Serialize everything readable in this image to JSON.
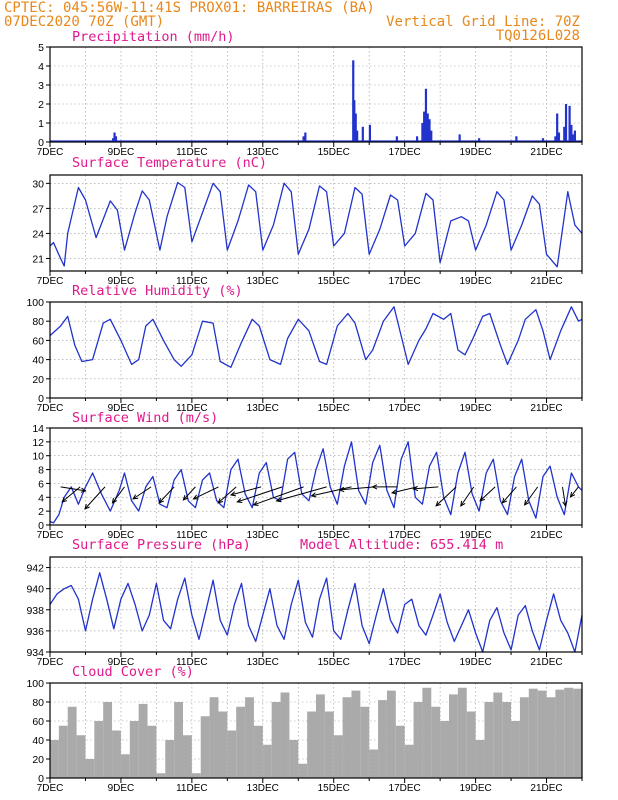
{
  "header": {
    "line1_left": "CPTEC:   045:56W-11:41S   PROX01: BARREIRAS (BA)",
    "line2_left": "07DEC2020 70Z (GMT)",
    "line2_right": "Vertical Grid Line: 70Z",
    "line3_right": "TQ0126L028"
  },
  "colors": {
    "header": "#e8871a",
    "title": "#e0198c",
    "line": "#2233cc",
    "cloud": "#aaaaaa"
  },
  "x_axis": {
    "start_day": 7,
    "end_day": 22,
    "labels": [
      "7DEC",
      "9DEC",
      "11DEC",
      "13DEC",
      "15DEC",
      "17DEC",
      "19DEC",
      "21DEC"
    ]
  },
  "chart_data": [
    {
      "type": "bar",
      "title": "Precipitation (mm/h)",
      "ylim": [
        0,
        5
      ],
      "yticks": [
        "0",
        "1",
        "2",
        "3",
        "4",
        "5"
      ],
      "x": [
        8.78,
        8.82,
        8.86,
        14.15,
        14.2,
        15.55,
        15.58,
        15.62,
        15.66,
        15.82,
        16.02,
        16.78,
        17.35,
        17.5,
        17.55,
        17.6,
        17.65,
        17.7,
        17.75,
        18.55,
        19.1,
        20.15,
        20.9,
        21.25,
        21.3,
        21.35,
        21.5,
        21.55,
        21.65,
        21.7,
        21.75,
        21.8
      ],
      "values": [
        0.2,
        0.5,
        0.3,
        0.3,
        0.5,
        4.3,
        2.2,
        1.5,
        0.6,
        0.8,
        0.9,
        0.3,
        0.3,
        1.0,
        1.6,
        2.8,
        1.5,
        1.2,
        0.6,
        0.4,
        0.2,
        0.3,
        0.2,
        0.3,
        1.5,
        0.5,
        0.8,
        2.0,
        1.9,
        0.9,
        0.4,
        0.6
      ]
    },
    {
      "type": "line",
      "title": "Surface Temperature (nC)",
      "ylim": [
        19.5,
        31
      ],
      "yticks": [
        "21",
        "24",
        "27",
        "30"
      ],
      "x": [
        7.0,
        7.1,
        7.3,
        7.4,
        7.5,
        7.8,
        8.0,
        8.3,
        8.7,
        8.9,
        9.1,
        9.4,
        9.6,
        9.8,
        10.1,
        10.3,
        10.6,
        10.8,
        11.0,
        11.3,
        11.6,
        11.8,
        12.0,
        12.3,
        12.6,
        12.8,
        13.0,
        13.3,
        13.6,
        13.8,
        14.0,
        14.3,
        14.6,
        14.8,
        15.0,
        15.3,
        15.6,
        15.8,
        16.0,
        16.3,
        16.6,
        16.8,
        17.0,
        17.3,
        17.6,
        17.8,
        18.0,
        18.3,
        18.6,
        18.8,
        19.0,
        19.3,
        19.6,
        19.8,
        20.0,
        20.3,
        20.6,
        20.8,
        21.0,
        21.3,
        21.6,
        21.8,
        22.0
      ],
      "values": [
        22.5,
        22.9,
        21.0,
        20.1,
        24.0,
        29.5,
        28.0,
        23.5,
        27.9,
        26.8,
        22.0,
        26.5,
        29.1,
        28.0,
        22.0,
        26.0,
        30.1,
        29.5,
        23.0,
        26.5,
        30.0,
        29.0,
        22.0,
        25.5,
        29.8,
        29.0,
        22.0,
        25.0,
        30.0,
        29.0,
        21.5,
        24.5,
        29.7,
        29.0,
        22.5,
        24.0,
        29.5,
        28.7,
        21.5,
        24.5,
        28.6,
        28.0,
        22.5,
        24.0,
        28.8,
        28.0,
        20.5,
        25.5,
        26.0,
        25.5,
        22.0,
        25.0,
        29.0,
        28.0,
        22.0,
        25.0,
        28.5,
        27.5,
        21.5,
        20.0,
        29.0,
        25.0,
        24.0
      ]
    },
    {
      "type": "line",
      "title": "Relative Humidity (%)",
      "ylim": [
        0,
        100
      ],
      "yticks": [
        "0",
        "20",
        "40",
        "60",
        "80",
        "100"
      ],
      "x": [
        7.0,
        7.3,
        7.5,
        7.7,
        7.9,
        8.2,
        8.5,
        8.7,
        9.0,
        9.3,
        9.5,
        9.7,
        9.9,
        10.2,
        10.5,
        10.7,
        11.0,
        11.3,
        11.6,
        11.8,
        12.1,
        12.4,
        12.7,
        12.9,
        13.2,
        13.5,
        13.7,
        14.0,
        14.3,
        14.6,
        14.8,
        15.1,
        15.4,
        15.6,
        15.9,
        16.1,
        16.4,
        16.7,
        16.9,
        17.1,
        17.4,
        17.6,
        17.8,
        18.1,
        18.3,
        18.5,
        18.7,
        18.9,
        19.2,
        19.4,
        19.7,
        19.9,
        20.2,
        20.4,
        20.7,
        20.9,
        21.1,
        21.4,
        21.7,
        21.9,
        22.0
      ],
      "values": [
        65,
        75,
        85,
        55,
        38,
        40,
        78,
        82,
        60,
        35,
        40,
        75,
        82,
        60,
        40,
        33,
        45,
        80,
        78,
        38,
        32,
        58,
        82,
        75,
        40,
        35,
        62,
        82,
        70,
        38,
        35,
        75,
        88,
        78,
        40,
        50,
        80,
        95,
        65,
        35,
        60,
        72,
        88,
        82,
        88,
        50,
        45,
        60,
        85,
        88,
        55,
        35,
        60,
        82,
        92,
        70,
        40,
        70,
        95,
        80,
        82
      ]
    },
    {
      "type": "line",
      "title": "Surface Wind (m/s)",
      "ylim": [
        0,
        14
      ],
      "yticks": [
        "0",
        "2",
        "4",
        "6",
        "8",
        "10",
        "12",
        "14"
      ],
      "x": [
        7.0,
        7.1,
        7.25,
        7.4,
        7.6,
        7.8,
        8.0,
        8.2,
        8.45,
        8.7,
        8.95,
        9.1,
        9.3,
        9.5,
        9.7,
        9.9,
        10.1,
        10.3,
        10.5,
        10.7,
        10.9,
        11.1,
        11.3,
        11.5,
        11.7,
        11.9,
        12.1,
        12.3,
        12.5,
        12.7,
        12.9,
        13.1,
        13.3,
        13.5,
        13.7,
        13.9,
        14.1,
        14.3,
        14.5,
        14.7,
        14.9,
        15.1,
        15.3,
        15.5,
        15.7,
        15.9,
        16.1,
        16.3,
        16.5,
        16.7,
        16.9,
        17.1,
        17.3,
        17.5,
        17.7,
        17.9,
        18.1,
        18.3,
        18.5,
        18.7,
        18.9,
        19.1,
        19.3,
        19.5,
        19.7,
        19.9,
        20.1,
        20.3,
        20.5,
        20.7,
        20.9,
        21.1,
        21.3,
        21.5,
        21.7,
        21.9,
        22.0
      ],
      "values": [
        0.5,
        0.3,
        1.5,
        4.0,
        5.5,
        3.0,
        5.5,
        7.5,
        4.5,
        2.0,
        5.0,
        7.5,
        3.5,
        2.0,
        5.5,
        7.0,
        3.0,
        2.5,
        6.5,
        8.0,
        3.5,
        2.5,
        6.5,
        7.5,
        3.5,
        2.5,
        8.0,
        9.5,
        4.5,
        2.5,
        7.5,
        9.0,
        4.0,
        3.5,
        9.5,
        10.5,
        4.5,
        3.5,
        8.0,
        11.0,
        5.5,
        3.0,
        8.5,
        12.0,
        5.0,
        3.0,
        9.0,
        11.5,
        5.0,
        2.5,
        9.5,
        12.0,
        4.0,
        3.0,
        8.5,
        10.5,
        4.0,
        1.5,
        7.5,
        10.5,
        4.5,
        2.0,
        7.5,
        9.5,
        3.5,
        1.5,
        7.0,
        9.5,
        3.5,
        1.0,
        7.0,
        8.5,
        4.0,
        1.5,
        7.5,
        5.5,
        5.0
      ],
      "arrows": [
        {
          "day": 7.3,
          "u": 2.5,
          "v": -0.4
        },
        {
          "day": 7.85,
          "u": -1.8,
          "v": -1.5
        },
        {
          "day": 8.55,
          "u": -2.0,
          "v": -2.2
        },
        {
          "day": 9.1,
          "u": -1.2,
          "v": -1.6
        },
        {
          "day": 9.85,
          "u": -1.8,
          "v": -1.2
        },
        {
          "day": 10.5,
          "u": -1.5,
          "v": -1.6
        },
        {
          "day": 11.1,
          "u": -1.2,
          "v": -1.3
        },
        {
          "day": 11.75,
          "u": -2.5,
          "v": -1.2
        },
        {
          "day": 12.25,
          "u": -1.8,
          "v": -1.6
        },
        {
          "day": 12.95,
          "u": -3.0,
          "v": -0.8
        },
        {
          "day": 13.55,
          "u": -4.5,
          "v": -1.5
        },
        {
          "day": 14.15,
          "u": -5.0,
          "v": -1.8
        },
        {
          "day": 14.8,
          "u": -5.0,
          "v": -1.4
        },
        {
          "day": 15.5,
          "u": -4.0,
          "v": -0.9
        },
        {
          "day": 16.15,
          "u": -3.5,
          "v": -0.3
        },
        {
          "day": 16.8,
          "u": -2.5,
          "v": 0.0
        },
        {
          "day": 17.35,
          "u": -2.5,
          "v": -0.6
        },
        {
          "day": 17.95,
          "u": -2.5,
          "v": -0.2
        },
        {
          "day": 18.45,
          "u": -2.0,
          "v": -1.9
        },
        {
          "day": 18.95,
          "u": -1.3,
          "v": -1.9
        },
        {
          "day": 19.55,
          "u": -1.5,
          "v": -1.4
        },
        {
          "day": 20.15,
          "u": -1.4,
          "v": -1.6
        },
        {
          "day": 20.75,
          "u": -1.3,
          "v": -1.8
        },
        {
          "day": 21.45,
          "u": 0.3,
          "v": -1.9
        },
        {
          "day": 21.9,
          "u": -0.8,
          "v": -1.0
        }
      ]
    },
    {
      "type": "line",
      "title": "Surface Pressure (hPa)",
      "annotation": "Model Altitude: 655.414 m",
      "ylim": [
        934,
        943
      ],
      "yticks": [
        "934",
        "936",
        "938",
        "940",
        "942"
      ],
      "x": [
        7.0,
        7.2,
        7.4,
        7.6,
        7.8,
        8.0,
        8.2,
        8.4,
        8.6,
        8.8,
        9.0,
        9.2,
        9.4,
        9.6,
        9.8,
        10.0,
        10.2,
        10.4,
        10.6,
        10.8,
        11.0,
        11.2,
        11.4,
        11.6,
        11.8,
        12.0,
        12.2,
        12.4,
        12.6,
        12.8,
        13.0,
        13.2,
        13.4,
        13.6,
        13.8,
        14.0,
        14.2,
        14.4,
        14.6,
        14.8,
        15.0,
        15.2,
        15.4,
        15.6,
        15.8,
        16.0,
        16.2,
        16.4,
        16.6,
        16.8,
        17.0,
        17.2,
        17.4,
        17.6,
        17.8,
        18.0,
        18.2,
        18.4,
        18.6,
        18.8,
        19.0,
        19.2,
        19.4,
        19.6,
        19.8,
        20.0,
        20.2,
        20.4,
        20.6,
        20.8,
        21.0,
        21.2,
        21.4,
        21.6,
        21.8,
        22.0
      ],
      "values": [
        938.5,
        939.5,
        940.0,
        940.3,
        939.0,
        936.0,
        939.0,
        941.5,
        939.0,
        936.2,
        939.0,
        940.5,
        938.5,
        936.0,
        937.5,
        940.5,
        937.0,
        936.2,
        939.0,
        941.0,
        937.5,
        935.2,
        938.0,
        940.8,
        937.0,
        935.6,
        938.5,
        940.5,
        936.5,
        935.0,
        937.5,
        940.0,
        936.5,
        935.2,
        938.5,
        940.8,
        936.8,
        935.4,
        939.0,
        941.0,
        936.0,
        935.2,
        938.0,
        940.5,
        936.5,
        934.8,
        937.5,
        940.0,
        937.0,
        935.8,
        938.5,
        939.0,
        936.5,
        935.6,
        937.5,
        939.5,
        936.8,
        935.0,
        936.5,
        938.0,
        935.8,
        934.0,
        937.0,
        938.2,
        935.8,
        934.2,
        937.5,
        938.4,
        936.0,
        934.2,
        937.0,
        939.5,
        937.0,
        935.8,
        934.0,
        937.5
      ]
    },
    {
      "type": "bar",
      "title": "Cloud Cover (%)",
      "ylim": [
        0,
        100
      ],
      "yticks": [
        "0",
        "20",
        "40",
        "60",
        "80",
        "100"
      ],
      "x": [
        7.0,
        7.25,
        7.5,
        7.75,
        8.0,
        8.25,
        8.5,
        8.75,
        9.0,
        9.25,
        9.5,
        9.75,
        10.0,
        10.25,
        10.5,
        10.75,
        11.0,
        11.25,
        11.5,
        11.75,
        12.0,
        12.25,
        12.5,
        12.75,
        13.0,
        13.25,
        13.5,
        13.75,
        14.0,
        14.25,
        14.5,
        14.75,
        15.0,
        15.25,
        15.5,
        15.75,
        16.0,
        16.25,
        16.5,
        16.75,
        17.0,
        17.25,
        17.5,
        17.75,
        18.0,
        18.25,
        18.5,
        18.75,
        19.0,
        19.25,
        19.5,
        19.75,
        20.0,
        20.25,
        20.5,
        20.75,
        21.0,
        21.25,
        21.5,
        21.75,
        22.0
      ],
      "values": [
        40,
        55,
        75,
        45,
        20,
        60,
        80,
        50,
        25,
        60,
        78,
        55,
        5,
        40,
        80,
        45,
        5,
        65,
        85,
        70,
        50,
        75,
        85,
        55,
        35,
        80,
        90,
        40,
        15,
        70,
        88,
        70,
        45,
        85,
        92,
        75,
        30,
        82,
        92,
        55,
        35,
        80,
        95,
        75,
        60,
        88,
        95,
        70,
        40,
        80,
        90,
        80,
        60,
        85,
        94,
        92,
        85,
        93,
        95,
        94,
        95
      ]
    }
  ]
}
